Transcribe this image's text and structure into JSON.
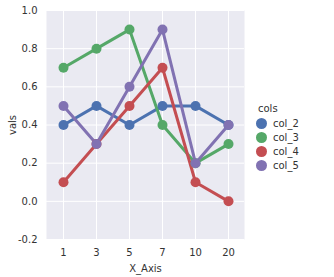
{
  "chart_data": {
    "type": "line",
    "x_label": "X_Axis",
    "y_label": "vals",
    "legend_title": "cols",
    "categories": [
      "1",
      "3",
      "5",
      "7",
      "10",
      "20"
    ],
    "series": [
      {
        "name": "col_2",
        "color": "#4c72b0",
        "values": [
          0.4,
          0.5,
          0.4,
          0.5,
          0.5,
          0.4
        ]
      },
      {
        "name": "col_3",
        "color": "#55a868",
        "values": [
          0.7,
          0.8,
          0.9,
          0.4,
          0.2,
          0.3
        ]
      },
      {
        "name": "col_4",
        "color": "#c44e52",
        "values": [
          0.1,
          0.3,
          0.5,
          0.7,
          0.1,
          0.0
        ]
      },
      {
        "name": "col_5",
        "color": "#8172b2",
        "values": [
          0.5,
          0.3,
          0.6,
          0.9,
          0.2,
          0.4
        ]
      }
    ],
    "ylim": [
      -0.2,
      1.0
    ],
    "yticks": [
      -0.2,
      {
        "value": 0,
        "label": "0.0"
      },
      0.2,
      0.4,
      0.6,
      0.8,
      {
        "value": 1,
        "label": "1.0"
      }
    ],
    "grid": true,
    "legend": "right",
    "marker": "circle"
  }
}
